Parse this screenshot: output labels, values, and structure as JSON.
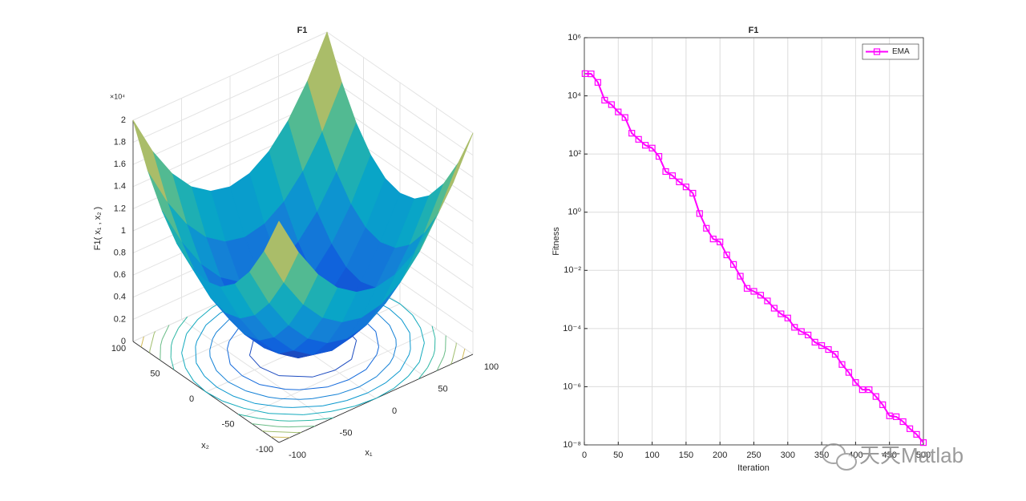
{
  "chart_data": [
    {
      "type": "surface",
      "title": "F1",
      "xlabel": "x₁",
      "ylabel": "x₂",
      "zlabel": "F1( x₁ , x₂ )",
      "x": [
        -100,
        -80,
        -60,
        -40,
        -20,
        0,
        20,
        40,
        60,
        80,
        100
      ],
      "y": [
        -100,
        -80,
        -60,
        -40,
        -20,
        0,
        20,
        40,
        60,
        80,
        100
      ],
      "z": [
        [
          2,
          1.64,
          1.36,
          1.16,
          1.04,
          1,
          1.04,
          1.16,
          1.36,
          1.64,
          2
        ],
        [
          1.64,
          1.28,
          1,
          0.8,
          0.68,
          0.64,
          0.68,
          0.8,
          1,
          1.28,
          1.64
        ],
        [
          1.36,
          1,
          0.72,
          0.52,
          0.4,
          0.36,
          0.4,
          0.52,
          0.72,
          1,
          1.36
        ],
        [
          1.16,
          0.8,
          0.52,
          0.32,
          0.2,
          0.16,
          0.2,
          0.32,
          0.52,
          0.8,
          1.16
        ],
        [
          1.04,
          0.68,
          0.4,
          0.2,
          0.08,
          0.04,
          0.08,
          0.2,
          0.4,
          0.68,
          1.04
        ],
        [
          1,
          0.64,
          0.36,
          0.16,
          0.04,
          0,
          0.04,
          0.16,
          0.36,
          0.64,
          1
        ],
        [
          1.04,
          0.68,
          0.4,
          0.2,
          0.08,
          0.04,
          0.08,
          0.2,
          0.4,
          0.68,
          1.04
        ],
        [
          1.16,
          0.8,
          0.52,
          0.32,
          0.2,
          0.16,
          0.2,
          0.32,
          0.52,
          0.8,
          1.16
        ],
        [
          1.36,
          1,
          0.72,
          0.52,
          0.4,
          0.36,
          0.4,
          0.52,
          0.72,
          1,
          1.36
        ],
        [
          1.64,
          1.28,
          1,
          0.8,
          0.68,
          0.64,
          0.68,
          0.8,
          1,
          1.28,
          1.64
        ],
        [
          2,
          1.64,
          1.36,
          1.16,
          1.04,
          1,
          1.04,
          1.16,
          1.36,
          1.64,
          2
        ]
      ],
      "xlim": [
        -100,
        100
      ],
      "ylim": [
        -100,
        100
      ],
      "zlim": [
        0,
        2
      ],
      "xticks": [
        -100,
        -50,
        0,
        50,
        100
      ],
      "yticks": [
        -100,
        -50,
        0,
        50,
        100
      ],
      "zticks": [
        0,
        0.2,
        0.4,
        0.6,
        0.8,
        1,
        1.2,
        1.4,
        1.6,
        1.8,
        2
      ],
      "zscale_label": "×10⁴",
      "contour_levels": [
        0.2,
        0.4,
        0.6,
        0.8,
        1,
        1.2,
        1.4,
        1.6,
        1.8
      ],
      "colormap": "parula",
      "grid": true
    },
    {
      "type": "line",
      "title": "F1",
      "xlabel": "Iteration",
      "ylabel": "Fitness",
      "x": [
        1,
        10,
        20,
        30,
        40,
        50,
        60,
        70,
        80,
        90,
        100,
        110,
        120,
        130,
        140,
        150,
        160,
        170,
        180,
        190,
        200,
        210,
        220,
        230,
        240,
        250,
        260,
        270,
        280,
        290,
        300,
        310,
        320,
        330,
        340,
        350,
        360,
        370,
        380,
        390,
        400,
        410,
        420,
        430,
        440,
        450,
        460,
        470,
        480,
        490,
        500
      ],
      "series": [
        {
          "name": "EMA",
          "color": "#ff00ff",
          "marker": "square",
          "values": [
            58000.0,
            57000.0,
            29000.0,
            7100.0,
            5000.0,
            2800.0,
            1800.0,
            520,
            320,
            200,
            160,
            83,
            25,
            18,
            11,
            7.4,
            4.5,
            0.9,
            0.28,
            0.12,
            0.095,
            0.034,
            0.016,
            0.0063,
            0.0024,
            0.0019,
            0.0014,
            0.00089,
            0.0005,
            0.00032,
            0.00023,
            0.00011,
            7.9e-05,
            6e-05,
            3.4e-05,
            2.6e-05,
            1.9e-05,
            1.3e-05,
            5.8e-06,
            3.1e-06,
            1.4e-06,
            7.9e-07,
            7.9e-07,
            4.6e-07,
            2.4e-07,
            1e-07,
            9.3e-08,
            6.3e-08,
            3.6e-08,
            2.3e-08,
            1.2e-08
          ]
        }
      ],
      "xlim": [
        0,
        500
      ],
      "xticks": [
        0,
        50,
        100,
        150,
        200,
        250,
        300,
        350,
        400,
        450,
        500
      ],
      "ylim": [
        1e-08,
        1000000.0
      ],
      "yscale": "log",
      "yticks": [
        {
          "value": 1e-08,
          "label": "10⁻⁸"
        },
        {
          "value": 1e-06,
          "label": "10⁻⁶"
        },
        {
          "value": 0.0001,
          "label": "10⁻⁴"
        },
        {
          "value": 0.01,
          "label": "10⁻²"
        },
        {
          "value": 1,
          "label": "10⁰"
        },
        {
          "value": 100.0,
          "label": "10²"
        },
        {
          "value": 10000.0,
          "label": "10⁴"
        },
        {
          "value": 1000000.0,
          "label": "10⁶"
        }
      ],
      "grid": true,
      "legend": "northeast"
    }
  ],
  "watermark": "天天Matlab"
}
